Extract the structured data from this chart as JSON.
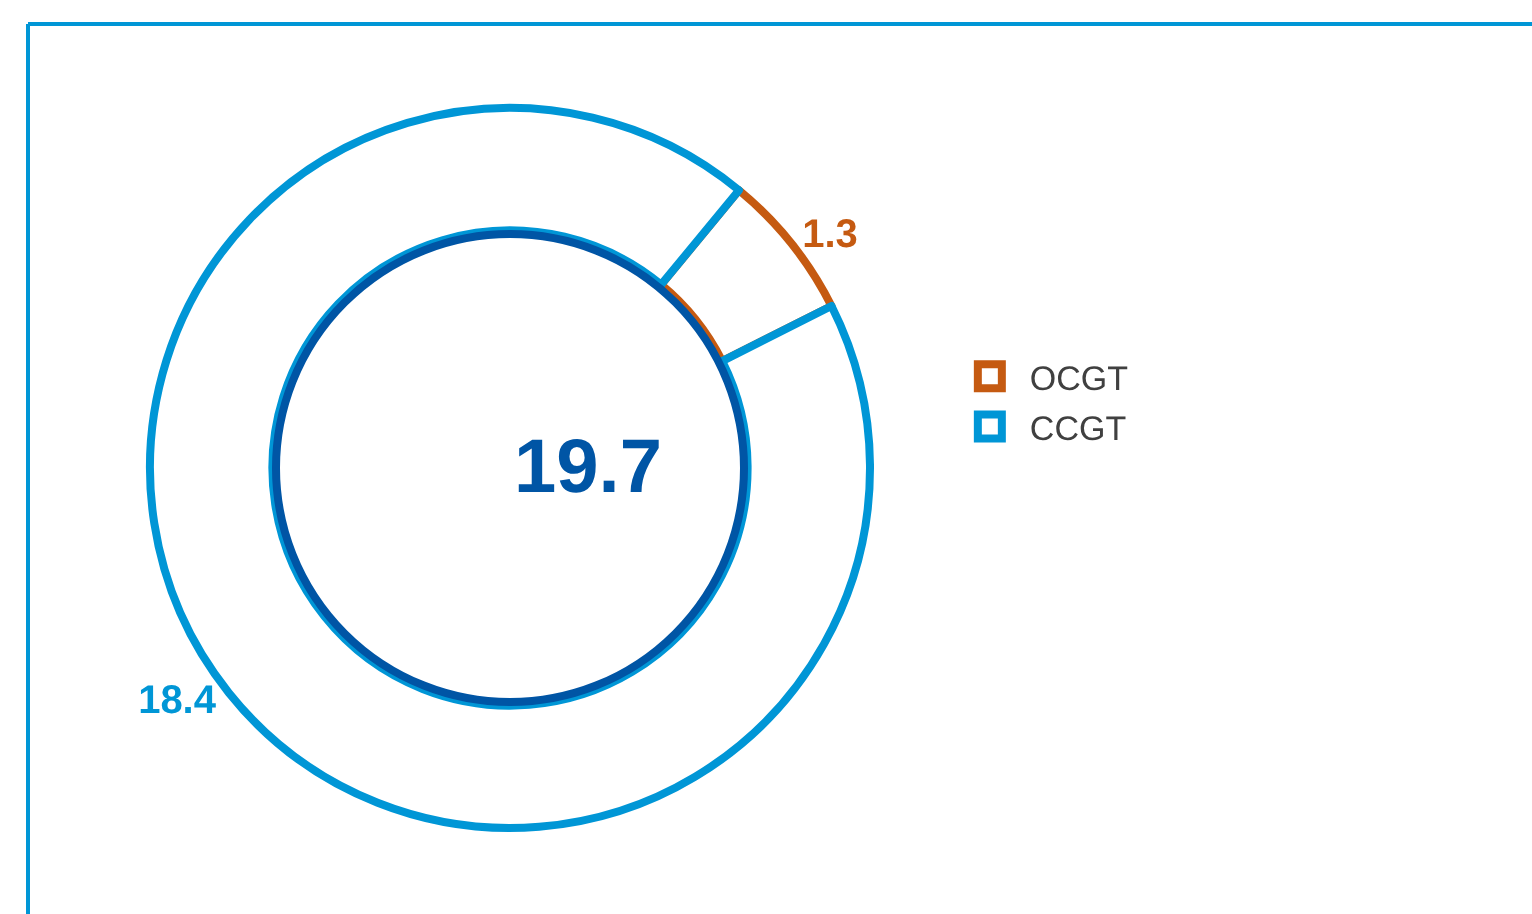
{
  "chart_data": {
    "type": "donut",
    "categories": [
      "OCGT",
      "CCGT"
    ],
    "values": [
      1.3,
      18.4
    ],
    "colors": [
      "#c55a11",
      "#0096d6"
    ],
    "value_labels": [
      "1.3",
      "18.4"
    ],
    "legend": "right",
    "annotations": [
      "19.7"
    ]
  }
}
